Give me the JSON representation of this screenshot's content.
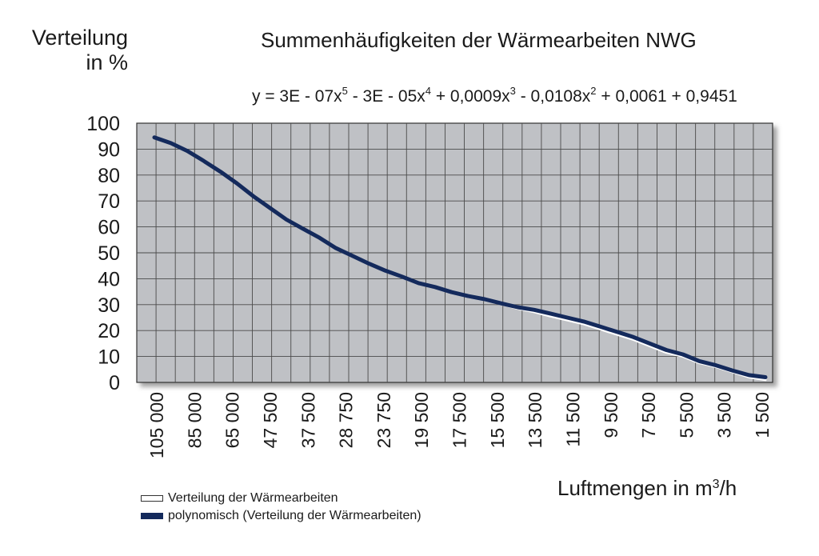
{
  "chart_data": {
    "type": "line",
    "title": "Summenhäufigkeiten der Wärmearbeiten NWG",
    "equation": {
      "prefix": "y = 3E - 07x",
      "exp1": "5",
      "part2": " - 3E - 05x",
      "exp2": "4",
      "part3": " + 0,0009x",
      "exp3": "3",
      "part4": " - 0,0108x",
      "exp4": "2",
      "part5": " + 0,0061 + 0,9451"
    },
    "ylabel": {
      "line1": "Verteilung",
      "line2": "in %"
    },
    "xlabel": {
      "text": "Luftmengen in m",
      "sup": "3",
      "suffix": "/h"
    },
    "ylim": [
      0,
      100
    ],
    "y_ticks": [
      0,
      10,
      20,
      30,
      40,
      50,
      60,
      70,
      80,
      90,
      100
    ],
    "x_tick_labels": [
      "105 000",
      "85 000",
      "65 000",
      "47 500",
      "37 500",
      "28 750",
      "23 750",
      "19 500",
      "17 500",
      "15 500",
      "13 500",
      "11 500",
      "9 500",
      "7 500",
      "5 500",
      "3 500",
      "1 500"
    ],
    "grid": true,
    "legend_position": "bottom-left",
    "background_color": "#bfc1c5",
    "series": [
      {
        "name": "Verteilung der Wärmearbeiten",
        "color": "#ffffff",
        "values": [
          94.5,
          92,
          89,
          85,
          81,
          76.5,
          71.5,
          67,
          62.5,
          59,
          55.5,
          51.5,
          48.5,
          45.5,
          42.8,
          40.5,
          38,
          36.5,
          34.5,
          33,
          31.8,
          30.2,
          28.5,
          27.2,
          25.5,
          24,
          22.5,
          20.5,
          18.5,
          16.5,
          14,
          11.5,
          10,
          7.5,
          6,
          4,
          2,
          1
        ]
      },
      {
        "name": "polynomisch (Verteilung der Wärmearbeiten)",
        "color": "#142a5c",
        "values": [
          94.5,
          92.3,
          89.3,
          85.4,
          81.3,
          76.8,
          71.8,
          67.3,
          62.8,
          59.3,
          55.8,
          51.8,
          48.8,
          45.8,
          43.1,
          40.8,
          38.3,
          36.8,
          34.8,
          33.3,
          32.1,
          30.5,
          29,
          28,
          26.5,
          25,
          23.5,
          21.5,
          19.5,
          17.5,
          15,
          12.5,
          10.8,
          8.2,
          6.6,
          4.6,
          2.8,
          2
        ]
      }
    ]
  }
}
